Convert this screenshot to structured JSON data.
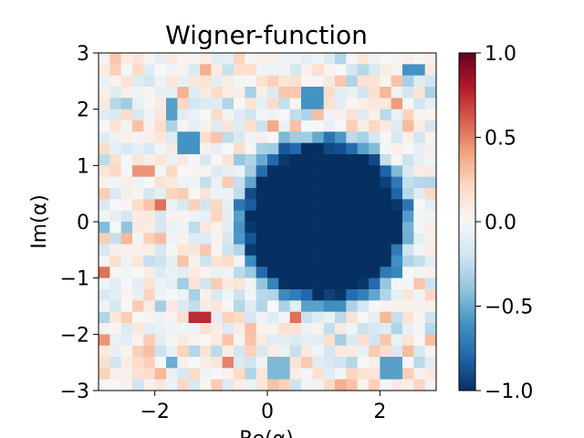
{
  "chart_data": {
    "type": "heatmap",
    "title": "Wigner-function",
    "xlabel": "Re(α)",
    "ylabel": "Im(α)",
    "xlim": [
      -3,
      3
    ],
    "ylim": [
      -3,
      3
    ],
    "x_ticks": [
      -2,
      0,
      2
    ],
    "x_tick_labels": [
      "−2",
      "0",
      "2"
    ],
    "y_ticks": [
      -3,
      -2,
      -1,
      0,
      1,
      2,
      3
    ],
    "y_tick_labels": [
      "−3",
      "−2",
      "−1",
      "0",
      "1",
      "2",
      "3"
    ],
    "grid": false,
    "colormap": "RdBu_r",
    "value_range": [
      -1.0,
      1.0
    ],
    "colorbar": {
      "ticks": [
        -1.0,
        -0.5,
        0.0,
        0.5,
        1.0
      ],
      "tick_labels": [
        "−1.0",
        "−0.5",
        "0.0",
        "0.5",
        "1.0"
      ]
    },
    "grid_cells": 30,
    "blob": {
      "center": [
        1.0,
        0.0
      ],
      "radius": 1.4,
      "value": -1.0,
      "description": "dark blue disk"
    },
    "highlighted_cells": [
      {
        "x": -1.2,
        "y": -1.7,
        "value": 0.75
      },
      {
        "x": -2.9,
        "y": -0.95,
        "value": 0.55
      },
      {
        "x": -1.95,
        "y": 0.25,
        "value": 0.55
      },
      {
        "x": -2.2,
        "y": 0.95,
        "value": 0.45
      },
      {
        "x": 0.45,
        "y": -1.7,
        "value": 0.55
      },
      {
        "x": -0.65,
        "y": -2.45,
        "value": 0.5
      },
      {
        "x": -2.9,
        "y": -2.1,
        "value": 0.45
      },
      {
        "x": 2.6,
        "y": 2.75,
        "value": -0.6
      },
      {
        "x": 0.8,
        "y": 2.2,
        "value": -0.6
      },
      {
        "x": -1.75,
        "y": 2.0,
        "value": -0.55
      },
      {
        "x": -1.4,
        "y": 1.4,
        "value": -0.6
      },
      {
        "x": 2.2,
        "y": -2.6,
        "value": -0.55
      },
      {
        "x": -1.75,
        "y": -2.45,
        "value": -0.5
      },
      {
        "x": 0.2,
        "y": -2.6,
        "value": -0.45
      }
    ]
  }
}
